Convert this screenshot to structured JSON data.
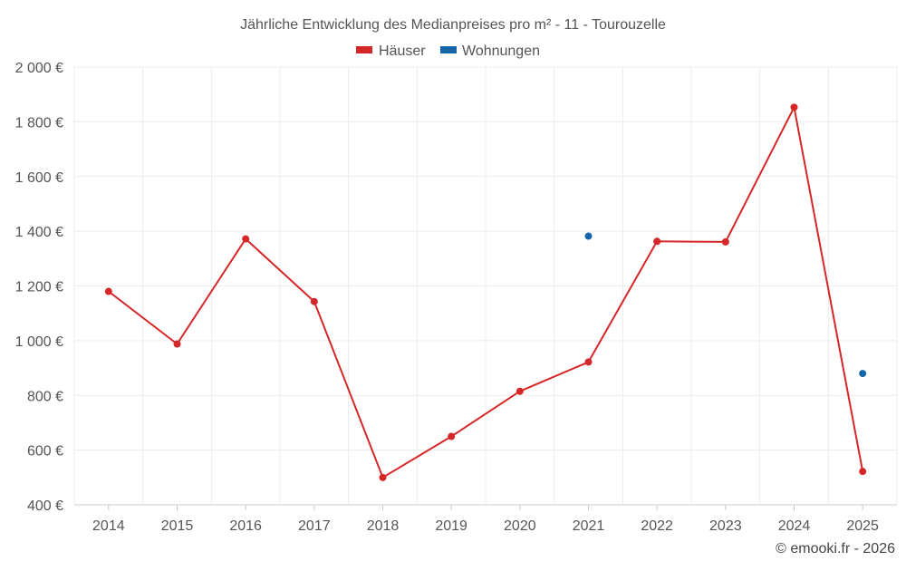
{
  "chart_data": {
    "type": "line",
    "title": "Jährliche Entwicklung des Medianpreises pro m² - 11 - Tourouzelle",
    "categories": [
      "2014",
      "2015",
      "2016",
      "2017",
      "2018",
      "2019",
      "2020",
      "2021",
      "2022",
      "2023",
      "2024",
      "2025"
    ],
    "y_tick_labels": [
      "400 €",
      "600 €",
      "800 €",
      "1 000 €",
      "1 200 €",
      "1 400 €",
      "1 600 €",
      "1 800 €",
      "2 000 €"
    ],
    "y_ticks": [
      400,
      600,
      800,
      1000,
      1200,
      1400,
      1600,
      1800,
      2000
    ],
    "ylim": [
      400,
      2000
    ],
    "grid": true,
    "legend_position": "top-center",
    "series": [
      {
        "name": "Häuser",
        "color": "#d62728",
        "values": [
          1180,
          988,
          1372,
          1143,
          500,
          650,
          815,
          922,
          1363,
          1361,
          1853,
          522
        ]
      },
      {
        "name": "Wohnungen",
        "color": "#1565a8",
        "values": [
          null,
          null,
          null,
          null,
          null,
          null,
          null,
          1382,
          null,
          null,
          null,
          880
        ]
      }
    ],
    "credit": "© emooki.fr - 2026"
  }
}
